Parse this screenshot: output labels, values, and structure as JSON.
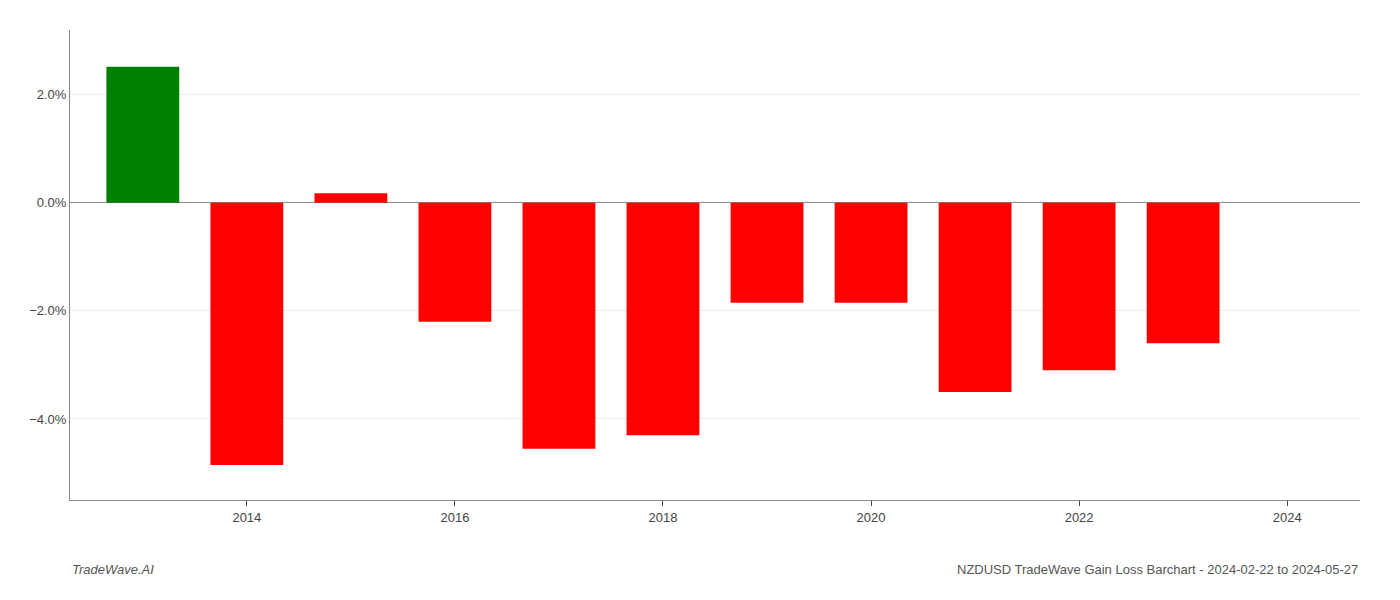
{
  "chart_data": {
    "type": "bar",
    "x": [
      2013,
      2014,
      2015,
      2016,
      2017,
      2018,
      2019,
      2020,
      2021,
      2022,
      2023
    ],
    "values": [
      2.52,
      -4.85,
      0.18,
      -2.2,
      -4.55,
      -4.3,
      -1.85,
      -1.85,
      -3.5,
      -3.1,
      -2.6
    ],
    "colors": [
      "#008000",
      "#ff0000",
      "#ff0000",
      "#ff0000",
      "#ff0000",
      "#ff0000",
      "#ff0000",
      "#ff0000",
      "#ff0000",
      "#ff0000",
      "#ff0000"
    ],
    "ylim": [
      -5.5,
      3.2
    ],
    "yticks": [
      {
        "value": -4.0,
        "label": "−4.0%"
      },
      {
        "value": -2.0,
        "label": "−2.0%"
      },
      {
        "value": 0.0,
        "label": "0.0%"
      },
      {
        "value": 2.0,
        "label": "2.0%"
      }
    ],
    "xlim": [
      2012.3,
      2024.7
    ],
    "xticks": [
      2014,
      2016,
      2018,
      2020,
      2022,
      2024
    ],
    "grid": true,
    "annotations": [
      "TradeWave.AI",
      "NZDUSD TradeWave Gain Loss Barchart - 2024-02-22 to 2024-05-27"
    ]
  }
}
